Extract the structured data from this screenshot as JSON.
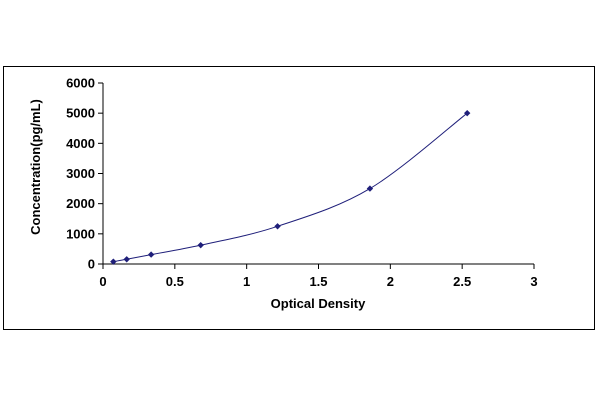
{
  "chart_data": {
    "type": "scatter",
    "title": "",
    "xlabel": "Optical Density",
    "ylabel": "Concentration(pg/mL)",
    "xlim": [
      0,
      3
    ],
    "ylim": [
      0,
      6000
    ],
    "x_ticks": [
      "0",
      "0.5",
      "1",
      "1.5",
      "2",
      "2.5",
      "3"
    ],
    "y_ticks": [
      "0",
      "1000",
      "2000",
      "3000",
      "4000",
      "5000",
      "6000"
    ],
    "grid": false,
    "legend": "none",
    "marker_color": "#1f1f7a",
    "line_color": "#1f1f7a",
    "series": [
      {
        "x": [
          0.072,
          0.165,
          0.335,
          0.68,
          1.215,
          1.858,
          2.535
        ],
        "y": [
          78,
          156,
          312,
          625,
          1250,
          2500,
          5000
        ]
      }
    ]
  }
}
